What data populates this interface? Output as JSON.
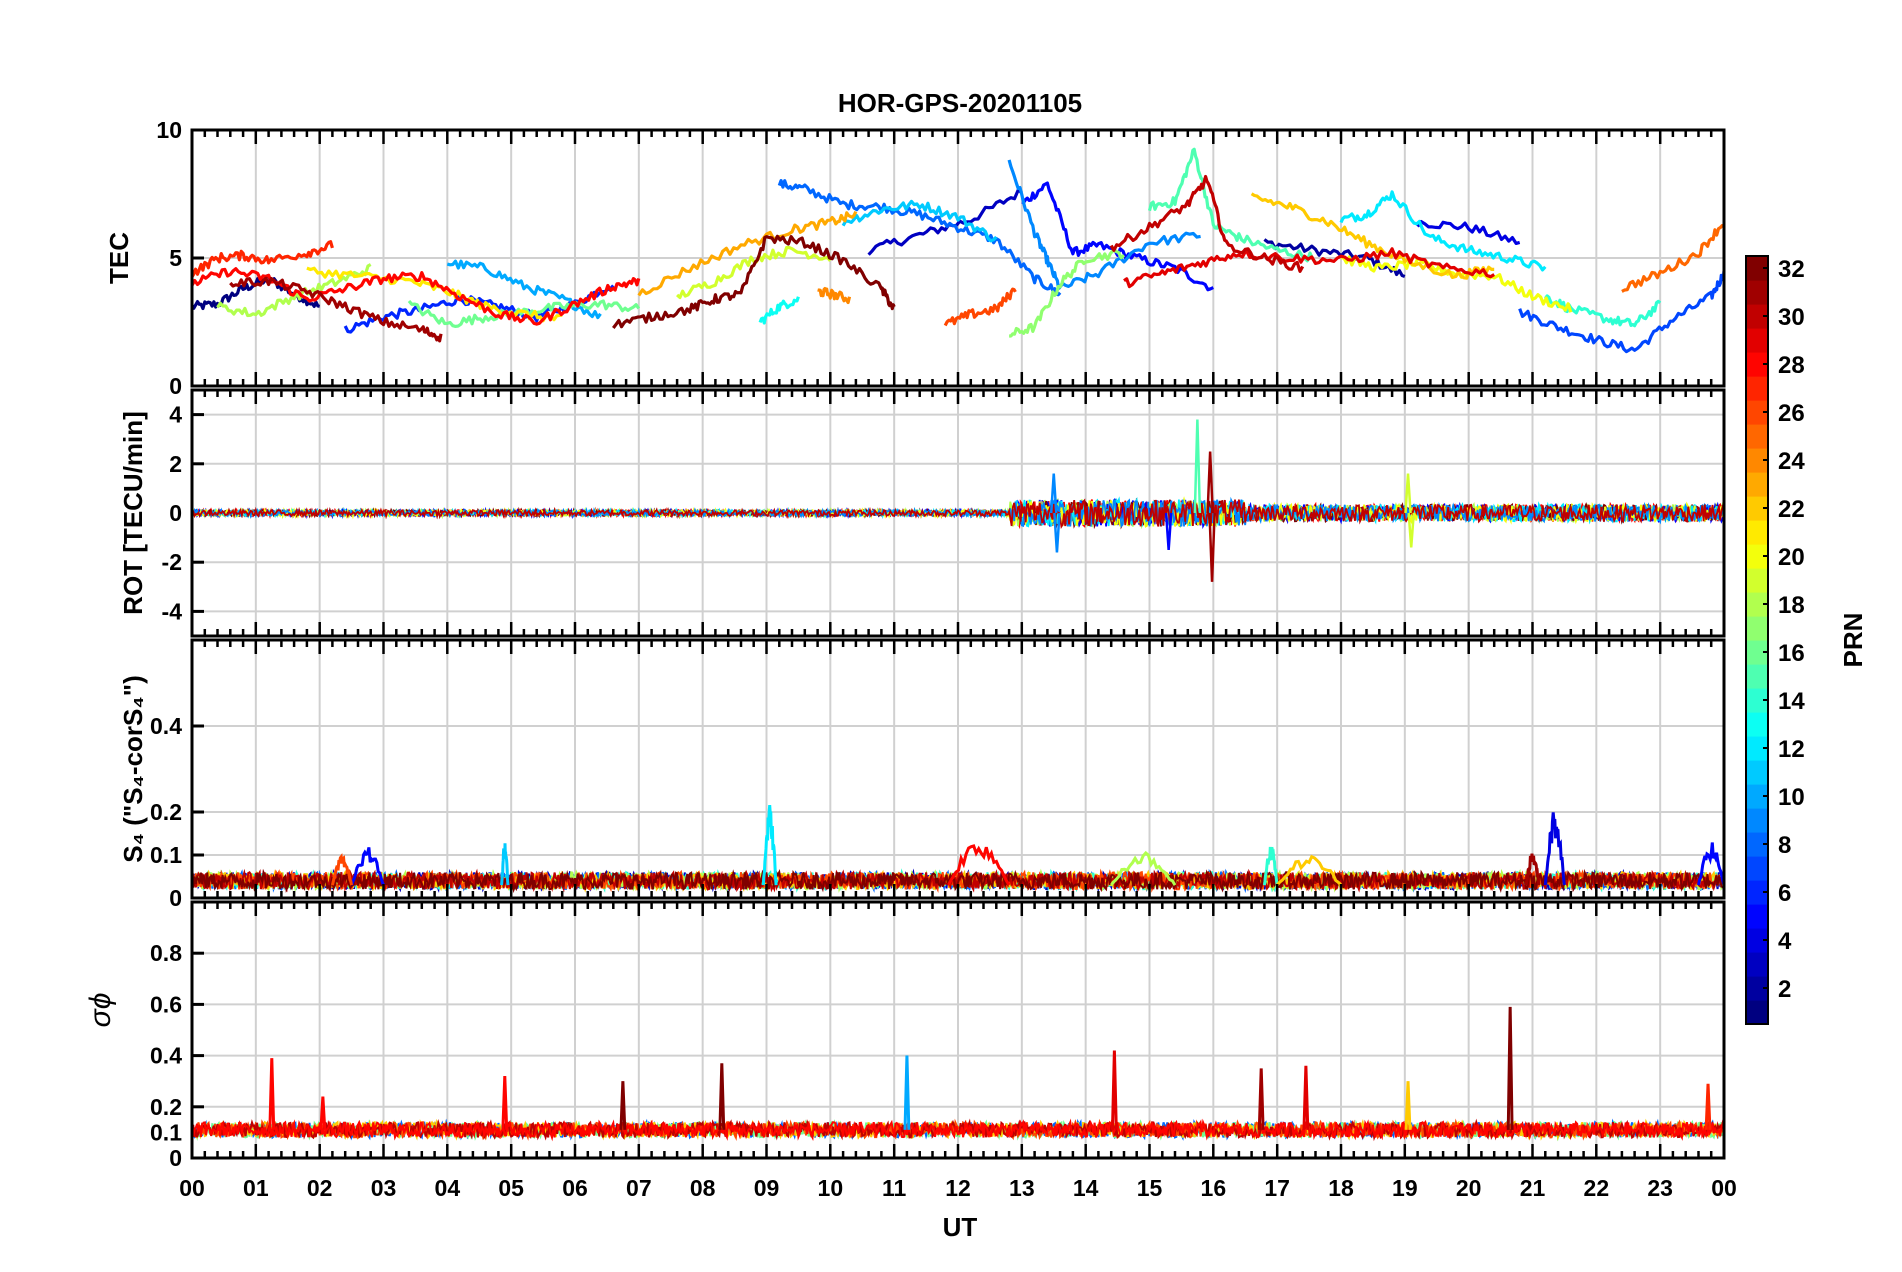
{
  "chart_data": {
    "type": "line",
    "title": "HOR-GPS-20201105",
    "xlabel": "UT",
    "x_ticks": [
      "00",
      "01",
      "02",
      "03",
      "04",
      "05",
      "06",
      "07",
      "08",
      "09",
      "10",
      "11",
      "12",
      "13",
      "14",
      "15",
      "16",
      "17",
      "18",
      "19",
      "20",
      "21",
      "22",
      "23",
      "00"
    ],
    "xlim": [
      0,
      24
    ],
    "grid": true,
    "panels": [
      {
        "id": "tec",
        "ylabel": "TEC",
        "ylim": [
          0,
          10
        ],
        "y_ticks": [
          "0",
          "5",
          "10"
        ],
        "tick_values": [
          0,
          5,
          10
        ],
        "series": [
          {
            "prn": 1,
            "x": [
              0.0,
              0.4,
              0.8,
              1.2,
              1.6,
              2.0
            ],
            "y": [
              3.1,
              3.2,
              3.8,
              4.2,
              3.6,
              3.1
            ]
          },
          {
            "prn": 2,
            "x": [
              16.8,
              17.6,
              18.4,
              19.0
            ],
            "y": [
              5.6,
              5.3,
              5.0,
              4.3
            ]
          },
          {
            "prn": 3,
            "x": [
              10.6,
              11.4,
              12.2,
              13.0
            ],
            "y": [
              5.3,
              5.9,
              6.5,
              7.6
            ]
          },
          {
            "prn": 4,
            "x": [
              19.2,
              20.0,
              20.8
            ],
            "y": [
              6.4,
              6.2,
              5.6
            ]
          },
          {
            "prn": 5,
            "x": [
              13.0,
              13.4,
              13.8,
              14.2,
              14.8,
              15.4,
              16.0
            ],
            "y": [
              7.1,
              7.9,
              5.2,
              5.5,
              5.0,
              4.6,
              3.8
            ]
          },
          {
            "prn": 6,
            "x": [
              2.4,
              3.0,
              3.6,
              4.2,
              4.8,
              5.4,
              6.0,
              6.6
            ],
            "y": [
              2.2,
              2.7,
              3.0,
              3.4,
              3.1,
              2.7,
              3.2,
              4.0
            ]
          },
          {
            "prn": 7,
            "x": [
              20.8,
              21.4,
              22.0,
              22.6,
              23.2,
              23.8,
              24.0
            ],
            "y": [
              2.9,
              2.3,
              1.8,
              1.4,
              2.6,
              3.5,
              4.4
            ]
          },
          {
            "prn": 8,
            "x": [
              9.2,
              9.6,
              10.2,
              10.8,
              11.4,
              12.0,
              12.6,
              13.2,
              13.6
            ],
            "y": [
              7.9,
              7.7,
              7.1,
              7.0,
              6.7,
              6.2,
              5.7,
              4.2,
              3.6
            ]
          },
          {
            "prn": 9,
            "x": [
              12.8,
              13.2,
              13.4,
              13.6,
              14.2,
              15.0,
              15.8
            ],
            "y": [
              8.8,
              6.0,
              4.9,
              3.8,
              4.4,
              5.6,
              5.9
            ]
          },
          {
            "prn": 10,
            "x": [
              4.0,
              4.6,
              5.2,
              5.8,
              6.4
            ],
            "y": [
              4.8,
              4.6,
              3.9,
              3.4,
              2.7
            ]
          },
          {
            "prn": 11,
            "x": [
              10.2,
              10.8,
              11.4,
              12.0,
              12.6
            ],
            "y": [
              6.4,
              6.9,
              7.1,
              6.6,
              5.7
            ]
          },
          {
            "prn": 12,
            "x": [
              18.0,
              18.4,
              18.8,
              19.4,
              20.0,
              20.6,
              21.2
            ],
            "y": [
              6.5,
              6.7,
              7.5,
              5.8,
              5.3,
              5.0,
              4.6
            ]
          },
          {
            "prn": 13,
            "x": [
              8.9,
              9.2,
              9.5
            ],
            "y": [
              2.5,
              3.1,
              3.4
            ]
          },
          {
            "prn": 14,
            "x": [
              21.2,
              21.6,
              22.2,
              22.6,
              23.0
            ],
            "y": [
              3.5,
              3.0,
              2.6,
              2.4,
              3.2
            ]
          },
          {
            "prn": 15,
            "x": [
              15.0,
              15.4,
              15.7,
              16.0,
              16.4,
              17.0,
              17.6
            ],
            "y": [
              7.0,
              7.2,
              9.2,
              6.3,
              5.8,
              5.3,
              5.0
            ]
          },
          {
            "prn": 16,
            "x": [
              3.4,
              4.0,
              4.6,
              5.2,
              5.8,
              6.4,
              7.0
            ],
            "y": [
              3.2,
              2.4,
              2.7,
              2.9,
              3.1,
              3.2,
              3.0
            ]
          },
          {
            "prn": 17,
            "x": [
              12.8,
              13.2,
              13.6,
              14.0,
              14.6
            ],
            "y": [
              2.0,
              2.3,
              4.0,
              5.0,
              5.2
            ]
          },
          {
            "prn": 18,
            "x": [
              0.4,
              1.0,
              1.6,
              2.2,
              2.8
            ],
            "y": [
              3.1,
              2.8,
              3.5,
              4.0,
              4.6
            ]
          },
          {
            "prn": 19,
            "x": [
              7.6,
              8.2,
              8.8,
              9.4,
              10.0
            ],
            "y": [
              3.5,
              4.1,
              5.0,
              5.3,
              5.0
            ]
          },
          {
            "prn": 20,
            "x": [
              18.0,
              18.6,
              19.2,
              19.8,
              20.4,
              21.0,
              21.6
            ],
            "y": [
              5.0,
              4.6,
              4.8,
              4.4,
              4.3,
              3.5,
              3.0
            ]
          },
          {
            "prn": 21,
            "x": [
              1.8,
              2.6,
              3.4,
              4.0,
              4.6,
              5.2,
              5.8
            ],
            "y": [
              4.5,
              4.3,
              4.1,
              3.7,
              3.1,
              2.8,
              2.6
            ]
          },
          {
            "prn": 22,
            "x": [
              16.6,
              17.2,
              17.8,
              18.4,
              19.0,
              19.8,
              20.4
            ],
            "y": [
              7.4,
              7.0,
              6.4,
              5.6,
              4.9,
              4.3,
              4.6
            ]
          },
          {
            "prn": 23,
            "x": [
              7.0,
              7.8,
              8.6,
              9.4,
              10.0,
              10.4
            ],
            "y": [
              3.6,
              4.6,
              5.5,
              6.1,
              6.4,
              6.7
            ]
          },
          {
            "prn": 24,
            "x": [
              9.8,
              10.0,
              10.3
            ],
            "y": [
              3.7,
              3.6,
              3.4
            ]
          },
          {
            "prn": 25,
            "x": [
              22.4,
              23.0,
              23.6,
              24.0
            ],
            "y": [
              3.8,
              4.4,
              5.2,
              6.4
            ]
          },
          {
            "prn": 26,
            "x": [
              11.8,
              12.2,
              12.6,
              12.9
            ],
            "y": [
              2.4,
              2.8,
              3.0,
              3.8
            ]
          },
          {
            "prn": 27,
            "x": [
              0.0,
              0.4,
              0.8,
              1.2,
              1.8,
              2.2
            ],
            "y": [
              4.4,
              5.0,
              5.1,
              4.9,
              5.2,
              5.5
            ]
          },
          {
            "prn": 28,
            "x": [
              0.0,
              0.6,
              1.2,
              1.8,
              2.4,
              3.0,
              3.6,
              4.2,
              4.8,
              5.4,
              6.0,
              6.6,
              7.0
            ],
            "y": [
              4.0,
              4.5,
              4.2,
              3.4,
              3.8,
              4.2,
              4.3,
              3.5,
              2.8,
              2.5,
              3.2,
              3.9,
              4.1
            ]
          },
          {
            "prn": 29,
            "x": [
              14.6,
              15.2,
              15.8,
              16.4,
              17.2,
              18.0,
              18.8,
              19.6,
              20.4
            ],
            "y": [
              4.0,
              4.4,
              4.8,
              5.2,
              5.0,
              4.9,
              5.2,
              4.6,
              4.4
            ]
          },
          {
            "prn": 30,
            "x": [
              14.4,
              15.0,
              15.6,
              15.9,
              16.2,
              16.8,
              17.4
            ],
            "y": [
              5.4,
              6.2,
              7.1,
              8.1,
              5.5,
              5.0,
              4.6
            ]
          },
          {
            "prn": 31,
            "x": [
              0.6,
              1.2,
              1.8,
              2.4,
              3.0,
              3.6,
              3.9
            ],
            "y": [
              4.0,
              4.1,
              3.7,
              3.1,
              2.5,
              2.2,
              1.9
            ]
          },
          {
            "prn": 32,
            "x": [
              6.6,
              7.2,
              7.8,
              8.2,
              8.6,
              9.0,
              9.6,
              10.2,
              10.8,
              11.0
            ],
            "y": [
              2.4,
              2.7,
              3.0,
              3.4,
              3.6,
              5.8,
              5.6,
              4.9,
              3.8,
              3.0
            ]
          }
        ]
      },
      {
        "id": "rot",
        "ylabel": "ROT [TECU/min]",
        "ylim": [
          -5,
          5
        ],
        "y_ticks": [
          "-4",
          "-2",
          "0",
          "2",
          "4"
        ],
        "tick_values": [
          -4,
          -2,
          0,
          2,
          4
        ],
        "baseline": 0,
        "spikes": [
          {
            "prn": 9,
            "x": 13.5,
            "value": 1.6
          },
          {
            "prn": 9,
            "x": 13.55,
            "value": -1.6
          },
          {
            "prn": 15,
            "x": 15.75,
            "value": 3.8
          },
          {
            "prn": 31,
            "x": 15.95,
            "value": 2.5
          },
          {
            "prn": 31,
            "x": 15.98,
            "value": -2.8
          },
          {
            "prn": 19,
            "x": 19.05,
            "value": 1.6
          },
          {
            "prn": 19,
            "x": 19.1,
            "value": -1.4
          },
          {
            "prn": 5,
            "x": 15.3,
            "value": -1.5
          }
        ]
      },
      {
        "id": "s4",
        "ylabel": "S₄ (\"S₄-corS₄\")",
        "ylim": [
          0,
          0.6
        ],
        "y_ticks": [
          "0",
          "0.1",
          "0.2",
          "0.4"
        ],
        "tick_values": [
          0,
          0.1,
          0.2,
          0.4
        ],
        "events": [
          {
            "prn": 12,
            "x0": 8.95,
            "x1": 9.15,
            "peak": 0.22
          },
          {
            "prn": 4,
            "x0": 21.2,
            "x1": 21.5,
            "peak": 0.21
          },
          {
            "prn": 28,
            "x0": 11.85,
            "x1": 12.8,
            "peak": 0.14
          },
          {
            "prn": 11,
            "x0": 4.85,
            "x1": 4.95,
            "peak": 0.13
          },
          {
            "prn": 5,
            "x0": 2.5,
            "x1": 3.0,
            "peak": 0.12
          },
          {
            "prn": 26,
            "x0": 2.2,
            "x1": 2.5,
            "peak": 0.1
          },
          {
            "prn": 14,
            "x0": 16.8,
            "x1": 17.0,
            "peak": 0.13
          },
          {
            "prn": 5,
            "x0": 23.6,
            "x1": 24.0,
            "peak": 0.13
          },
          {
            "prn": 31,
            "x0": 20.9,
            "x1": 21.1,
            "peak": 0.11
          },
          {
            "prn": 18,
            "x0": 14.4,
            "x1": 15.4,
            "peak": 0.11
          },
          {
            "prn": 22,
            "x0": 17.0,
            "x1": 18.0,
            "peak": 0.1
          }
        ]
      },
      {
        "id": "sigma",
        "ylabel": "σϕ",
        "ylim": [
          0,
          1
        ],
        "y_ticks": [
          "0",
          "0.1",
          "0.2",
          "0.4",
          "0.6",
          "0.8"
        ],
        "tick_values": [
          0,
          0.1,
          0.2,
          0.4,
          0.6,
          0.8
        ],
        "baseline": 0.11,
        "spikes": [
          {
            "prn": 28,
            "x": 1.25,
            "value": 0.39
          },
          {
            "prn": 28,
            "x": 4.9,
            "value": 0.32
          },
          {
            "prn": 32,
            "x": 6.75,
            "value": 0.3
          },
          {
            "prn": 32,
            "x": 8.3,
            "value": 0.37
          },
          {
            "prn": 10,
            "x": 11.2,
            "value": 0.4
          },
          {
            "prn": 29,
            "x": 14.45,
            "value": 0.42
          },
          {
            "prn": 31,
            "x": 16.75,
            "value": 0.35
          },
          {
            "prn": 29,
            "x": 17.45,
            "value": 0.36
          },
          {
            "prn": 22,
            "x": 19.05,
            "value": 0.3
          },
          {
            "prn": 32,
            "x": 20.65,
            "value": 0.59
          },
          {
            "prn": 27,
            "x": 23.75,
            "value": 0.29
          },
          {
            "prn": 28,
            "x": 2.05,
            "value": 0.24
          }
        ]
      }
    ],
    "colorbar": {
      "label": "PRN",
      "colormap": "jet",
      "range": [
        1,
        32
      ],
      "ticks": [
        "2",
        "4",
        "6",
        "8",
        "10",
        "12",
        "14",
        "16",
        "18",
        "20",
        "22",
        "24",
        "26",
        "28",
        "30",
        "32"
      ],
      "tick_values": [
        2,
        4,
        6,
        8,
        10,
        12,
        14,
        16,
        18,
        20,
        22,
        24,
        26,
        28,
        30,
        32
      ]
    }
  }
}
